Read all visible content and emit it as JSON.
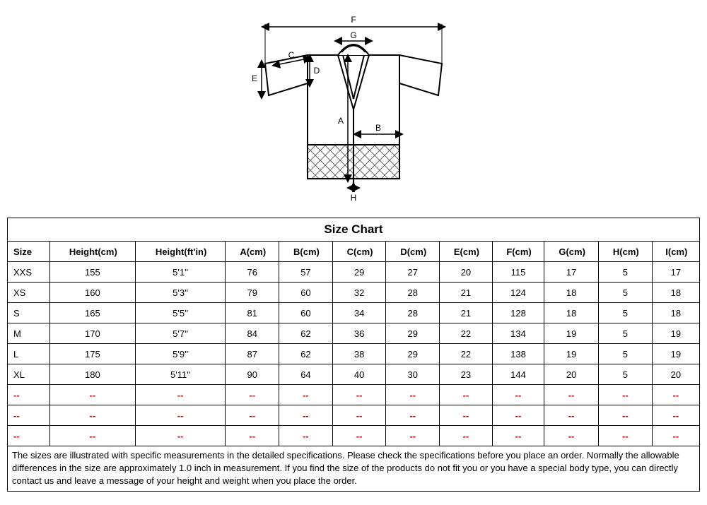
{
  "diagram": {
    "labels": [
      "A",
      "B",
      "C",
      "D",
      "E",
      "F",
      "G",
      "H"
    ],
    "stroke_color": "#000000",
    "hatch_color": "#666666"
  },
  "table": {
    "title": "Size Chart",
    "columns": [
      "Size",
      "Height(cm)",
      "Height(ft'in)",
      "A(cm)",
      "B(cm)",
      "C(cm)",
      "D(cm)",
      "E(cm)",
      "F(cm)",
      "G(cm)",
      "H(cm)",
      "I(cm)"
    ],
    "rows": [
      [
        "XXS",
        "155",
        "5'1''",
        "76",
        "57",
        "29",
        "27",
        "20",
        "115",
        "17",
        "5",
        "17"
      ],
      [
        "XS",
        "160",
        "5'3''",
        "79",
        "60",
        "32",
        "28",
        "21",
        "124",
        "18",
        "5",
        "18"
      ],
      [
        "S",
        "165",
        "5'5''",
        "81",
        "60",
        "34",
        "28",
        "21",
        "128",
        "18",
        "5",
        "18"
      ],
      [
        "M",
        "170",
        "5'7''",
        "84",
        "62",
        "36",
        "29",
        "22",
        "134",
        "19",
        "5",
        "19"
      ],
      [
        "L",
        "175",
        "5'9''",
        "87",
        "62",
        "38",
        "29",
        "22",
        "138",
        "19",
        "5",
        "19"
      ],
      [
        "XL",
        "180",
        "5'11''",
        "90",
        "64",
        "40",
        "30",
        "23",
        "144",
        "20",
        "5",
        "20"
      ]
    ],
    "empty_rows": 3,
    "dash": "--"
  },
  "footnote": "The sizes are illustrated with specific measurements in the detailed specifications.  Please check the specifications before you place an order.  Normally the allowable differences in the size are approximately 1.0 inch in measurement. If you find the size of the products do not fit you or you have a special body type, you can directly contact us and leave a message of your height and weight when you place the order."
}
